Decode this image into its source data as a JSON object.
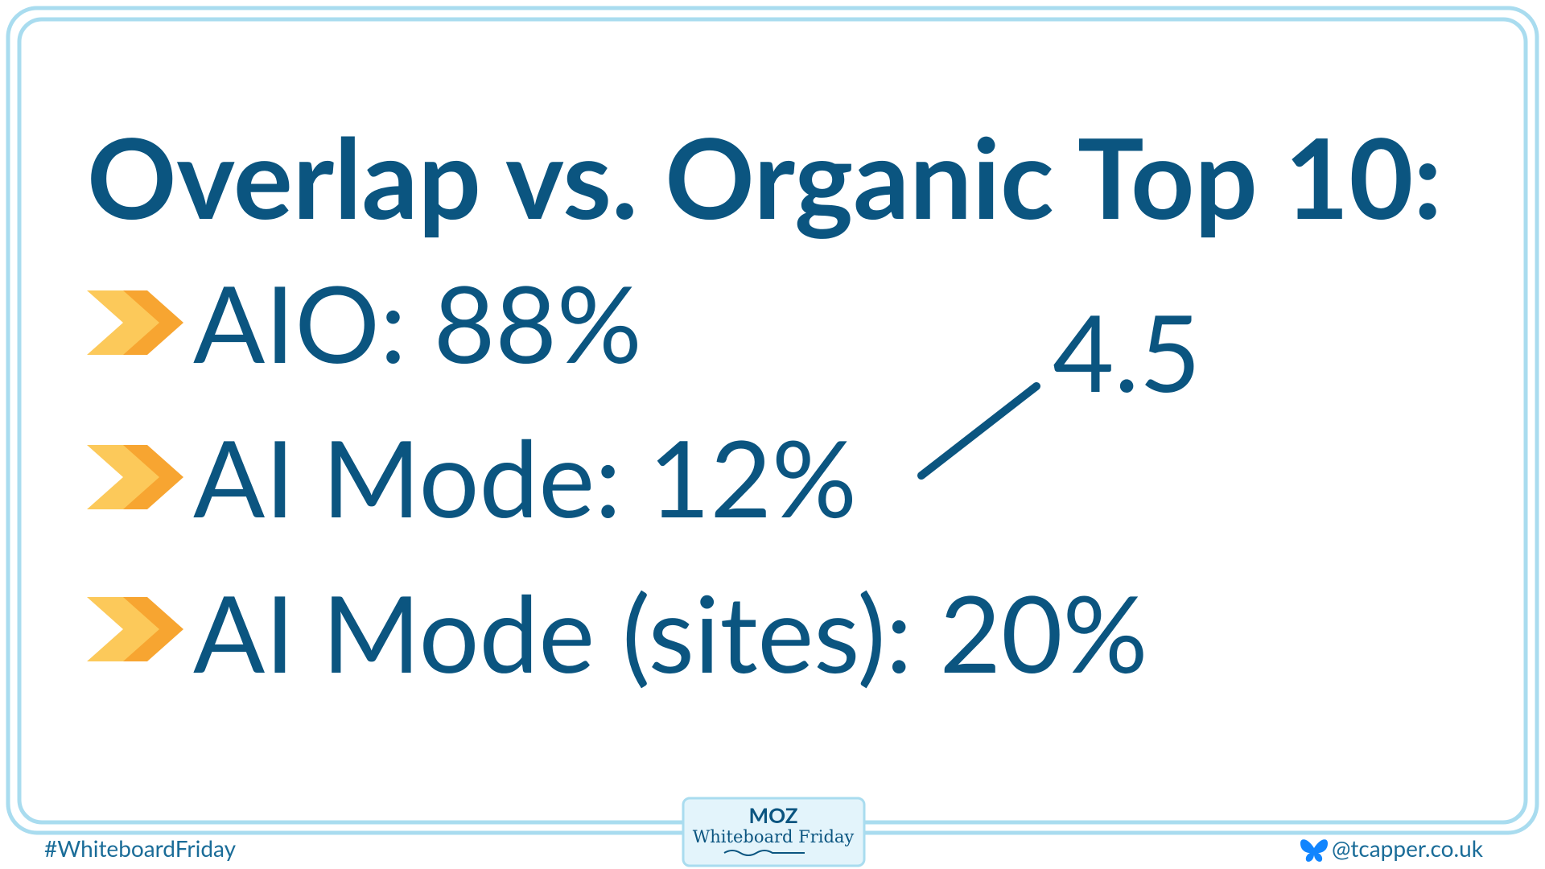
{
  "title": "Overlap vs. Organic Top 10:",
  "bullets": [
    "AIO: 88%",
    "AI Mode: 12%",
    "AI Mode (sites): 20%"
  ],
  "annotation": "4.5",
  "footer": {
    "hashtag": "#WhiteboardFriday",
    "logo_brand": "MOZ",
    "logo_show": "Whiteboard Friday",
    "handle": "@tcapper.co.uk"
  }
}
